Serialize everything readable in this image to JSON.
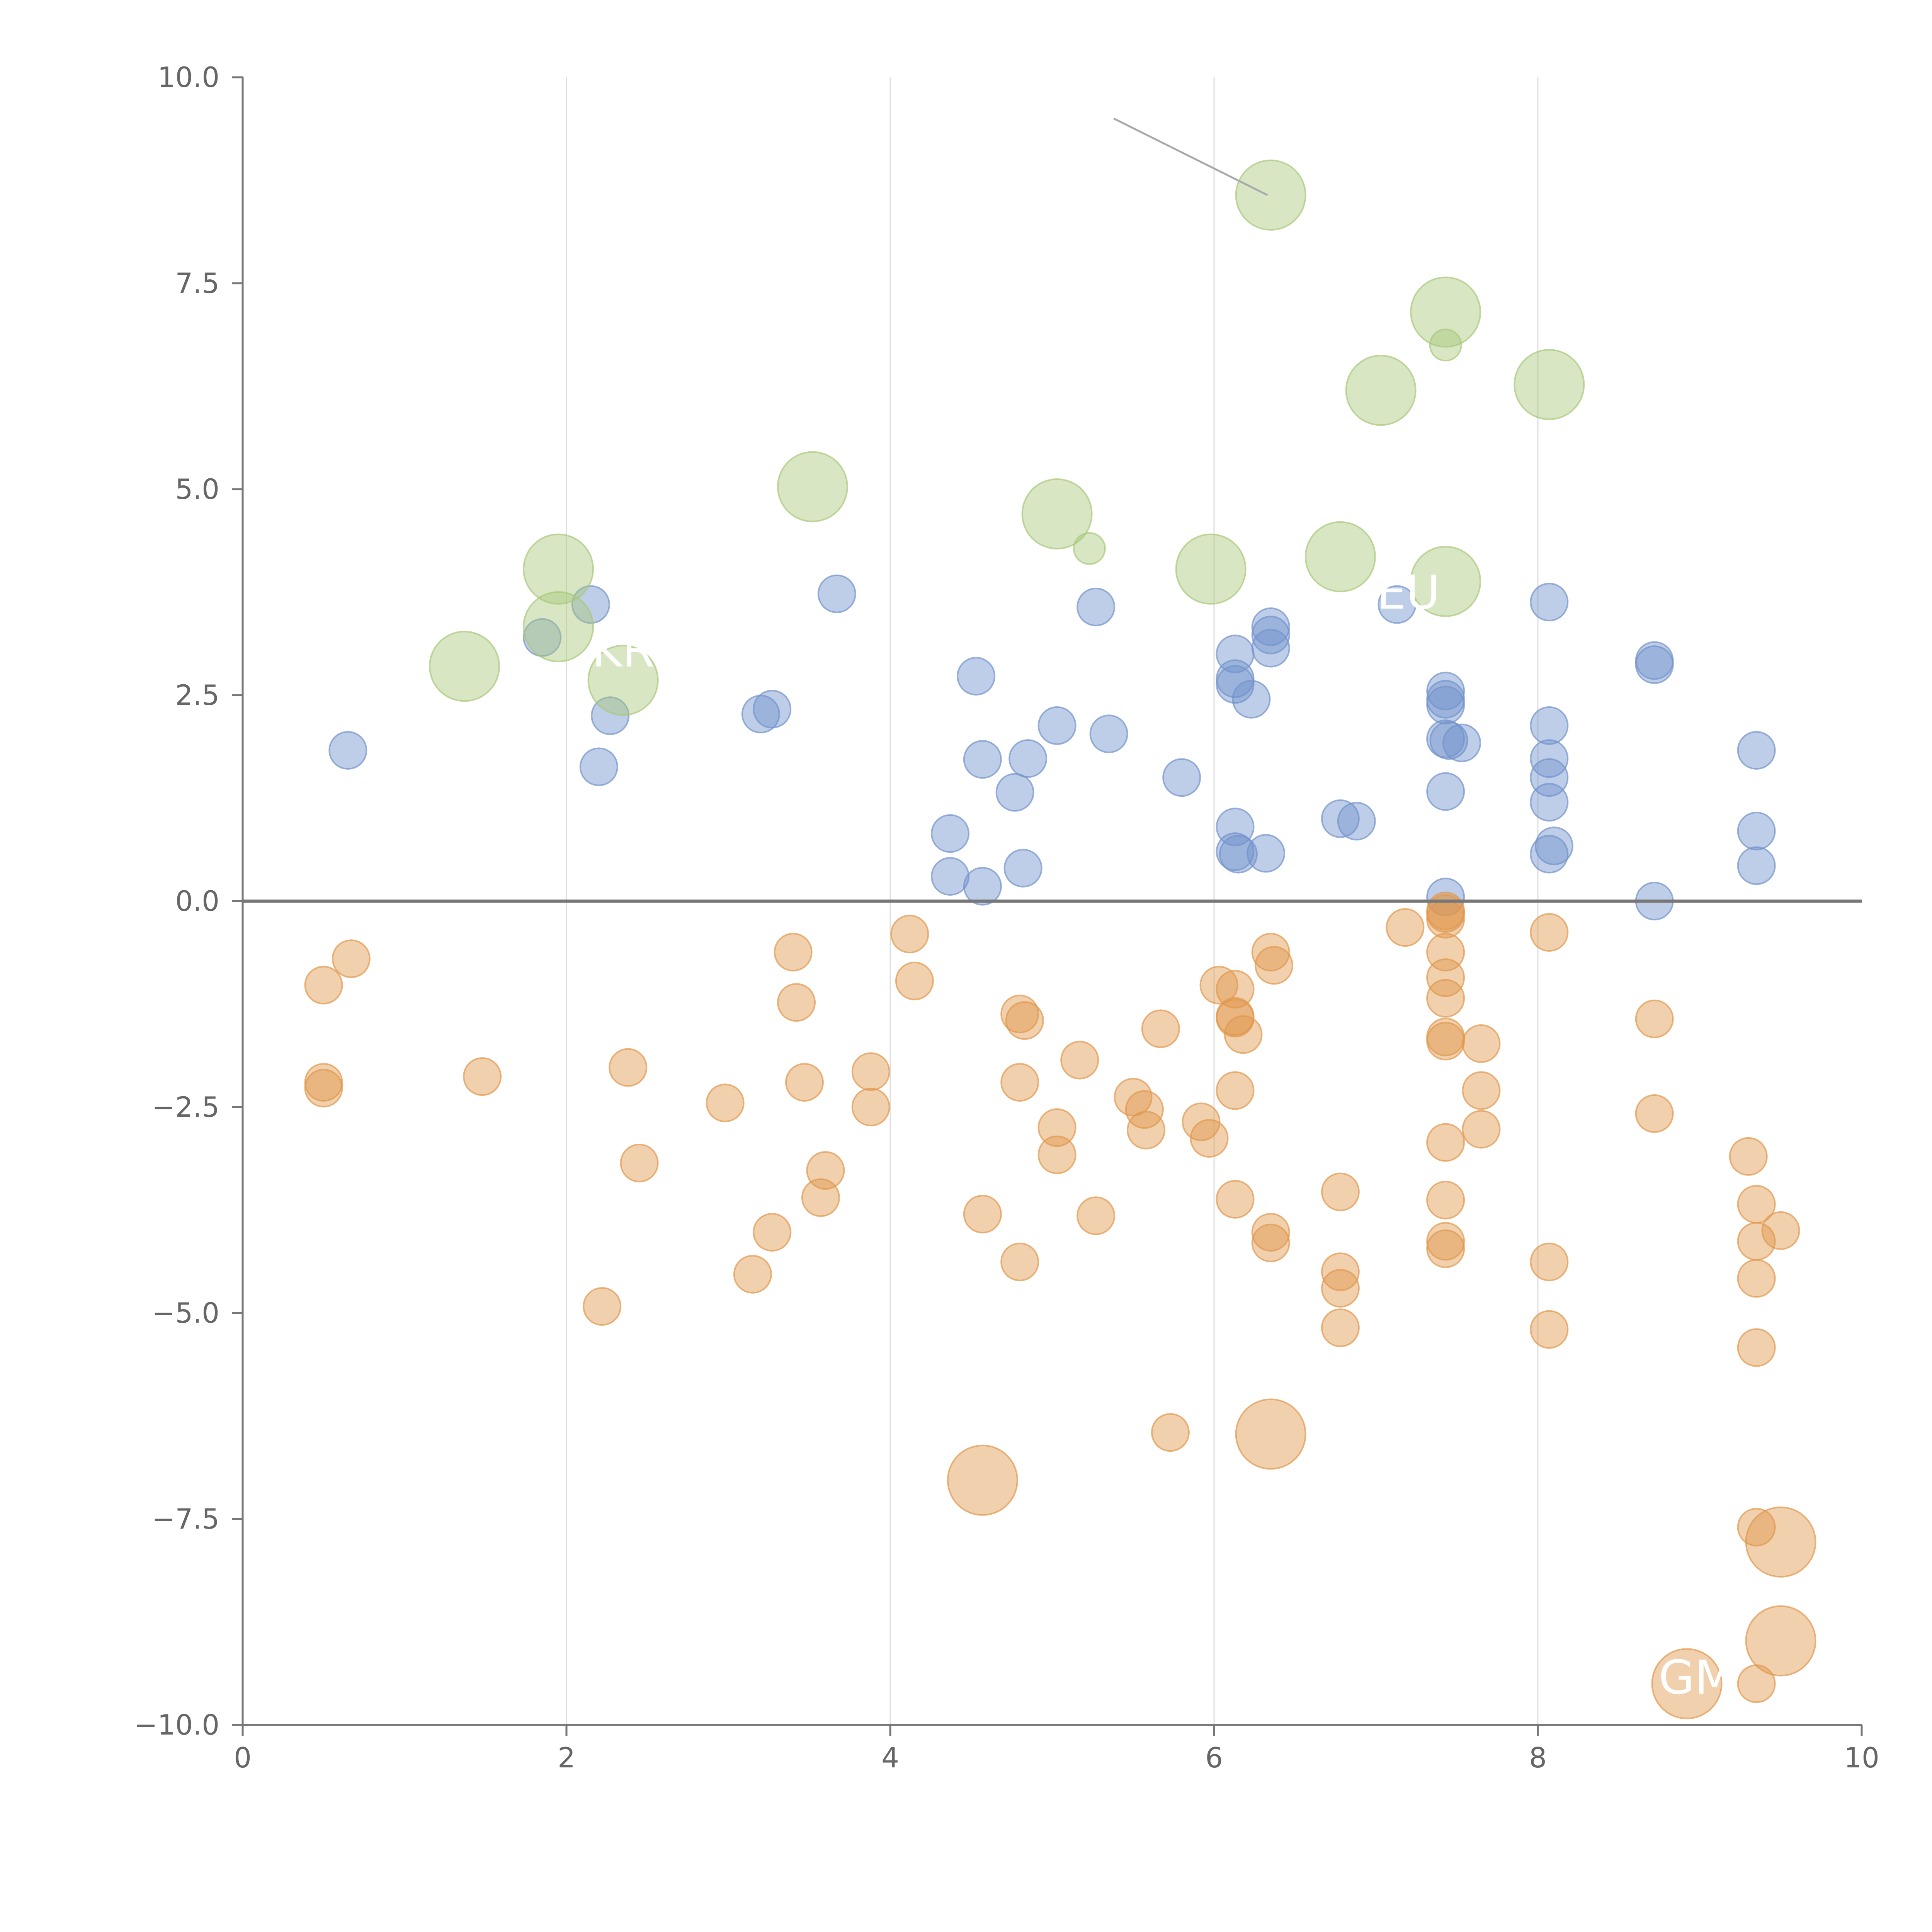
{
  "chart_data": {
    "type": "scatter",
    "title": "",
    "xlabel": "",
    "ylabel": "",
    "xlim": [
      0,
      10
    ],
    "ylim": [
      -10,
      10
    ],
    "x_ticks": [
      0,
      2,
      4,
      6,
      8,
      10
    ],
    "x_tick_labels": [
      "0",
      "2",
      "4",
      "6",
      "8",
      "10"
    ],
    "y_ticks": [
      10,
      7.5,
      5,
      2.5,
      0,
      -2.5,
      -5,
      -7.5,
      -10
    ],
    "y_tick_labels": [
      "10.0",
      "7.5",
      "5.0",
      "2.5",
      "0.0",
      "−2.5",
      "−5.0",
      "−7.5",
      "−10.0"
    ],
    "grid": "vertical",
    "zero_line": 0,
    "colors": {
      "blue": "#7293cb",
      "orange": "#e1974c",
      "green": "#a8c879"
    },
    "series": [
      {
        "name": "positive",
        "color": "#7293cb",
        "points": [
          [
            0.65,
            1.83
          ],
          [
            1.85,
            3.2
          ],
          [
            2.15,
            3.6
          ],
          [
            2.2,
            1.63
          ],
          [
            2.27,
            2.25
          ],
          [
            3.2,
            2.27
          ],
          [
            3.27,
            2.33
          ],
          [
            3.67,
            3.73
          ],
          [
            4.37,
            0.82
          ],
          [
            4.37,
            0.3
          ],
          [
            4.53,
            2.73
          ],
          [
            4.57,
            1.72
          ],
          [
            4.57,
            0.18
          ],
          [
            4.77,
            1.32
          ],
          [
            4.82,
            0.4
          ],
          [
            4.85,
            1.73
          ],
          [
            5.03,
            2.13
          ],
          [
            5.27,
            3.57
          ],
          [
            5.35,
            2.03
          ],
          [
            5.8,
            1.5
          ],
          [
            6.13,
            3.0
          ],
          [
            6.13,
            2.7
          ],
          [
            6.13,
            2.63
          ],
          [
            6.13,
            0.9
          ],
          [
            6.13,
            0.6
          ],
          [
            6.15,
            0.57
          ],
          [
            6.23,
            2.45
          ],
          [
            6.32,
            0.58
          ],
          [
            6.35,
            3.33
          ],
          [
            6.35,
            3.23
          ],
          [
            6.35,
            3.07
          ],
          [
            6.78,
            1.0
          ],
          [
            6.88,
            0.97
          ],
          [
            7.13,
            3.6
          ],
          [
            7.43,
            2.55
          ],
          [
            7.43,
            2.45
          ],
          [
            7.43,
            2.38
          ],
          [
            7.43,
            1.97
          ],
          [
            7.45,
            1.95
          ],
          [
            7.53,
            1.92
          ],
          [
            7.43,
            1.33
          ],
          [
            7.43,
            0.05
          ],
          [
            8.07,
            3.63
          ],
          [
            8.07,
            2.13
          ],
          [
            8.07,
            1.73
          ],
          [
            8.07,
            1.5
          ],
          [
            8.07,
            1.2
          ],
          [
            8.1,
            0.67
          ],
          [
            8.07,
            0.57
          ],
          [
            8.72,
            2.92
          ],
          [
            8.72,
            2.87
          ],
          [
            8.72,
            0.0
          ],
          [
            9.35,
            1.83
          ],
          [
            9.35,
            0.85
          ],
          [
            9.35,
            0.43
          ]
        ]
      },
      {
        "name": "negative",
        "color": "#e1974c",
        "points": [
          [
            0.5,
            -1.02
          ],
          [
            0.67,
            -0.7
          ],
          [
            0.5,
            -2.2
          ],
          [
            0.5,
            -2.27
          ],
          [
            1.48,
            -2.13
          ],
          [
            2.22,
            -4.92
          ],
          [
            2.38,
            -2.02
          ],
          [
            2.45,
            -3.18
          ],
          [
            2.98,
            -2.45
          ],
          [
            3.15,
            -4.53
          ],
          [
            3.27,
            -4.02
          ],
          [
            3.4,
            -0.62
          ],
          [
            3.42,
            -1.23
          ],
          [
            3.47,
            -2.2
          ],
          [
            3.57,
            -3.6
          ],
          [
            3.6,
            -3.27
          ],
          [
            3.88,
            -2.07
          ],
          [
            3.88,
            -2.5
          ],
          [
            4.12,
            -0.4
          ],
          [
            4.15,
            -0.97
          ],
          [
            4.57,
            -3.8
          ],
          [
            4.8,
            -1.37
          ],
          [
            4.8,
            -2.2
          ],
          [
            4.8,
            -4.38
          ],
          [
            4.83,
            -1.45
          ],
          [
            5.03,
            -2.75
          ],
          [
            5.03,
            -3.08
          ],
          [
            5.17,
            -1.93
          ],
          [
            5.27,
            -3.82
          ],
          [
            5.5,
            -2.38
          ],
          [
            5.57,
            -2.53
          ],
          [
            5.58,
            -2.78
          ],
          [
            5.67,
            -1.55
          ],
          [
            5.73,
            -6.45
          ],
          [
            5.92,
            -2.68
          ],
          [
            5.97,
            -2.88
          ],
          [
            6.03,
            -1.02
          ],
          [
            6.13,
            -1.07
          ],
          [
            6.13,
            -1.4
          ],
          [
            6.13,
            -1.42
          ],
          [
            6.18,
            -1.62
          ],
          [
            6.13,
            -2.3
          ],
          [
            6.13,
            -3.62
          ],
          [
            6.35,
            -0.62
          ],
          [
            6.37,
            -0.78
          ],
          [
            6.35,
            -4.02
          ],
          [
            6.35,
            -4.15
          ],
          [
            6.78,
            -3.53
          ],
          [
            6.78,
            -4.5
          ],
          [
            6.78,
            -4.7
          ],
          [
            6.78,
            -5.18
          ],
          [
            7.18,
            -0.32
          ],
          [
            7.43,
            -0.12
          ],
          [
            7.43,
            -0.15
          ],
          [
            7.43,
            -0.22
          ],
          [
            7.43,
            -0.62
          ],
          [
            7.43,
            -0.93
          ],
          [
            7.43,
            -1.18
          ],
          [
            7.43,
            -1.65
          ],
          [
            7.43,
            -1.7
          ],
          [
            7.43,
            -2.93
          ],
          [
            7.43,
            -3.63
          ],
          [
            7.43,
            -4.13
          ],
          [
            7.43,
            -4.22
          ],
          [
            7.65,
            -1.73
          ],
          [
            7.65,
            -2.3
          ],
          [
            7.65,
            -2.77
          ],
          [
            8.07,
            -0.38
          ],
          [
            8.07,
            -4.38
          ],
          [
            8.07,
            -5.2
          ],
          [
            8.72,
            -1.43
          ],
          [
            8.72,
            -2.58
          ],
          [
            9.3,
            -3.1
          ],
          [
            9.35,
            -3.68
          ],
          [
            9.35,
            -4.13
          ],
          [
            9.5,
            -4.0
          ],
          [
            9.35,
            -4.58
          ],
          [
            9.35,
            -5.42
          ],
          [
            9.35,
            -7.6
          ],
          [
            9.35,
            -9.5
          ]
        ]
      },
      {
        "name": "large-positive",
        "color": "#a8c879",
        "points": [
          [
            1.37,
            2.85
          ],
          [
            1.95,
            4.03
          ],
          [
            1.95,
            3.33
          ],
          [
            2.35,
            2.68
          ],
          [
            3.52,
            5.03
          ],
          [
            5.03,
            4.7
          ],
          [
            5.23,
            4.28
          ],
          [
            5.98,
            4.03
          ],
          [
            6.35,
            8.57
          ],
          [
            6.78,
            4.18
          ],
          [
            7.03,
            6.2
          ],
          [
            7.43,
            7.15
          ],
          [
            7.43,
            6.75
          ],
          [
            7.43,
            3.88
          ],
          [
            8.07,
            6.27
          ]
        ],
        "sizes": [
          1.0,
          1.0,
          1.0,
          1.0,
          1.0,
          1.0,
          0.45,
          1.0,
          1.0,
          1.0,
          1.0,
          1.0,
          0.45,
          1.0,
          1.0
        ]
      },
      {
        "name": "large-negative",
        "color": "#e1974c",
        "points": [
          [
            4.57,
            -7.03
          ],
          [
            6.35,
            -6.47
          ],
          [
            8.92,
            -9.5
          ],
          [
            9.5,
            -7.78
          ],
          [
            9.5,
            -8.98
          ]
        ]
      }
    ],
    "labels": [
      {
        "text": "KR",
        "x": 2.35,
        "y": 2.85
      },
      {
        "text": "EU",
        "x": 7.2,
        "y": 3.55
      },
      {
        "text": "GM",
        "x": 8.98,
        "y": -9.62
      }
    ],
    "annotation_line": {
      "x1": 5.38,
      "y1": 9.5,
      "x2": 6.33,
      "y2": 8.57
    }
  }
}
